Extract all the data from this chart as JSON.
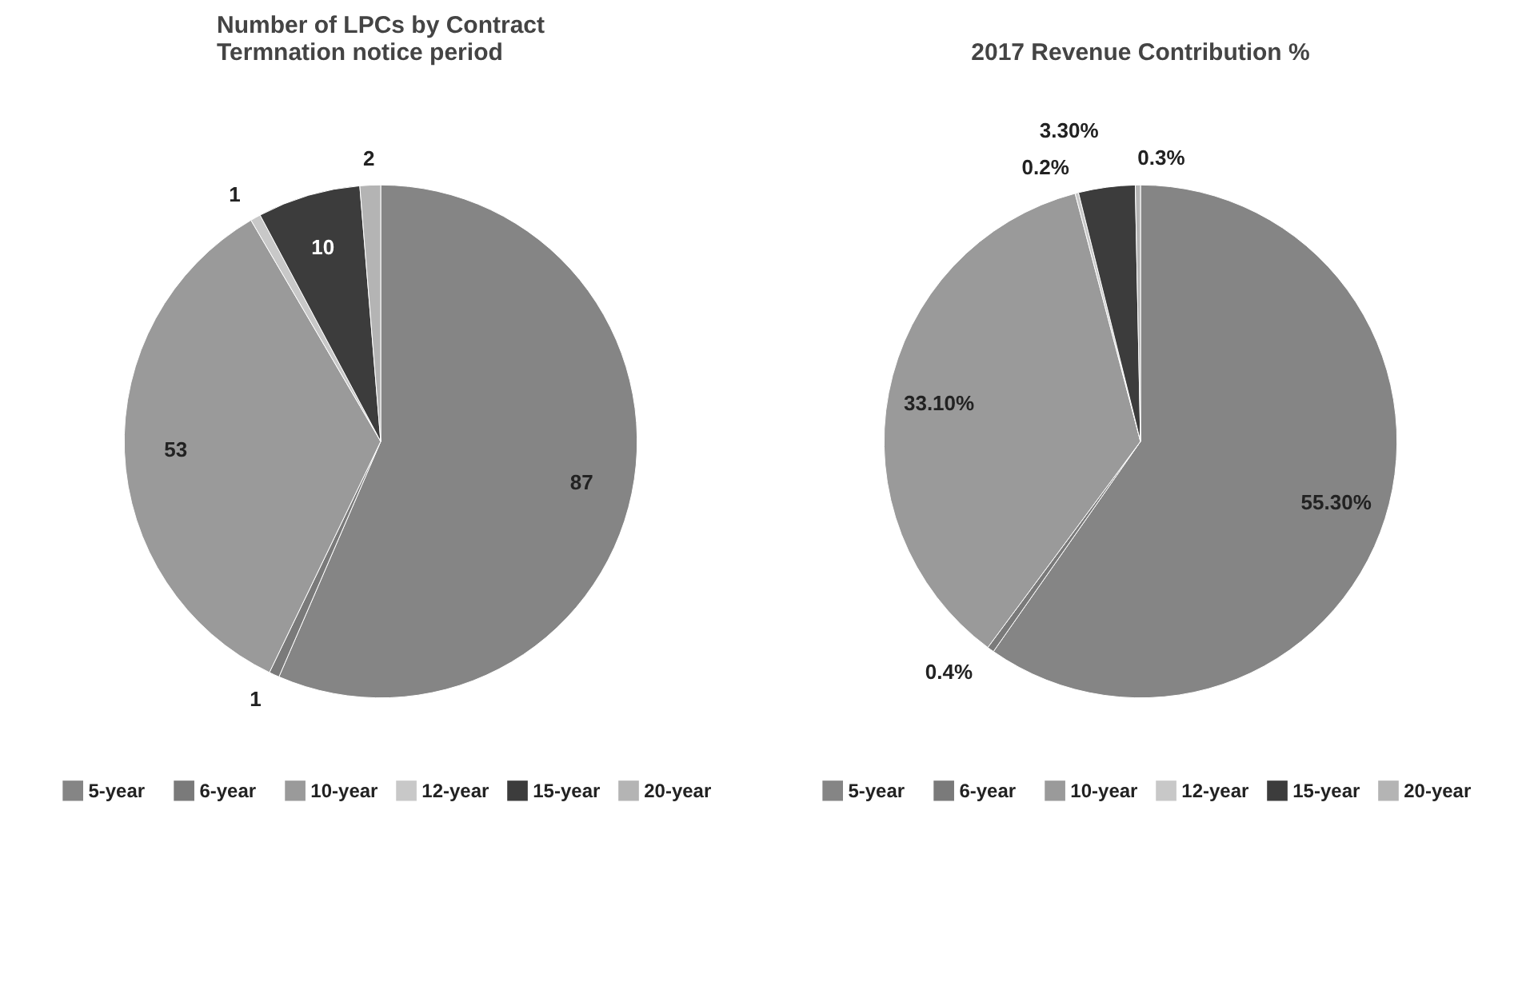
{
  "chart_data": [
    {
      "type": "pie",
      "title": "Number of LPCs by Contract\nTermnation notice period",
      "categories": [
        "5-year",
        "6-year",
        "10-year",
        "12-year",
        "15-year",
        "20-year"
      ],
      "values": [
        87,
        1,
        53,
        1,
        10,
        2
      ],
      "colors": [
        "#858585",
        "#7a7a7a",
        "#9a9a9a",
        "#c8c8c8",
        "#3c3c3c",
        "#b4b4b4"
      ],
      "data_labels": true,
      "legend": "bottom"
    },
    {
      "type": "pie",
      "title": "2017 Revenue Contribution %",
      "categories": [
        "5-year",
        "6-year",
        "10-year",
        "12-year",
        "15-year",
        "20-year"
      ],
      "values": [
        55.3,
        0.4,
        33.1,
        0.2,
        3.3,
        0.3
      ],
      "colors": [
        "#858585",
        "#7a7a7a",
        "#9a9a9a",
        "#c8c8c8",
        "#3c3c3c",
        "#b4b4b4"
      ],
      "value_labels": [
        "55.30%",
        "0.4%",
        "33.10%",
        "0.2%",
        "3.30%",
        "0.3%"
      ],
      "legend": "bottom"
    }
  ]
}
